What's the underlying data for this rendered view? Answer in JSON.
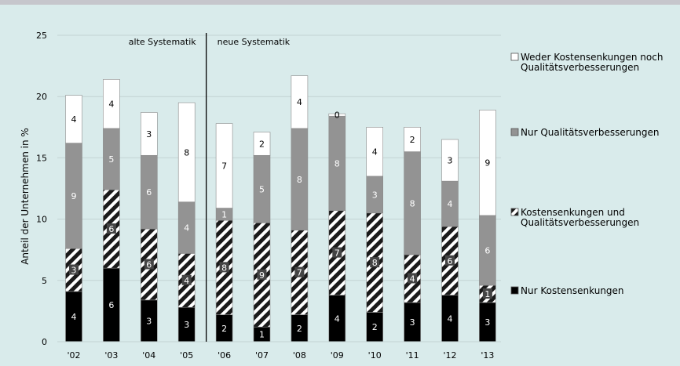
{
  "chart_data": {
    "type": "bar",
    "stacked": true,
    "categories": [
      "'02",
      "'03",
      "'04",
      "'05",
      "'06",
      "'07",
      "'08",
      "'09",
      "'10",
      "'11",
      "'12",
      "'13"
    ],
    "ylabel": "Anteil der Unternehmen in %",
    "yticks": [
      "0",
      "5",
      "10",
      "15",
      "20",
      "25"
    ],
    "ylim": [
      0,
      25
    ],
    "grid": true,
    "legend_position": "right",
    "annotations": {
      "left_period": "alte Systematik",
      "right_period": "neue Systematik",
      "divider_between": [
        "'05",
        "'06"
      ]
    },
    "series": [
      {
        "name": "Nur Kostensenkungen",
        "color": "#000000",
        "pattern": "solid",
        "values": [
          4.1,
          6.0,
          3.4,
          2.8,
          2.2,
          1.2,
          2.2,
          3.8,
          2.4,
          3.2,
          3.8,
          3.2
        ],
        "labels": [
          "4",
          "6",
          "3",
          "3",
          "2",
          "1",
          "2",
          "4",
          "2",
          "3",
          "4",
          "3"
        ]
      },
      {
        "name": "Kostensenkungen und Qualitätsverbesserungen",
        "color": "#444444",
        "pattern": "hatch",
        "values": [
          3.5,
          6.4,
          5.8,
          4.4,
          7.7,
          8.5,
          6.9,
          6.9,
          8.1,
          3.9,
          5.6,
          1.4
        ],
        "labels": [
          "3",
          "6",
          "6",
          "4",
          "8",
          "9",
          "7",
          "7",
          "8",
          "4",
          "6",
          "1"
        ]
      },
      {
        "name": "Nur Qualitätsverbesserungen",
        "color": "#939393",
        "pattern": "solid",
        "values": [
          8.6,
          5.0,
          6.0,
          4.2,
          1.0,
          5.5,
          8.3,
          7.7,
          3.0,
          8.4,
          3.7,
          5.7
        ],
        "labels": [
          "9",
          "5",
          "6",
          "4",
          "1",
          "5",
          "8",
          "8",
          "3",
          "8",
          "4",
          "6"
        ]
      },
      {
        "name": "Weder Kostensenkungen noch Qualitätsverbesserungen",
        "color": "#ffffff",
        "pattern": "solid",
        "values": [
          3.9,
          4.0,
          3.5,
          8.1,
          6.9,
          1.9,
          4.3,
          0.2,
          4.0,
          2.0,
          3.4,
          8.6
        ],
        "labels": [
          "4",
          "4",
          "3",
          "8",
          "7",
          "2",
          "4",
          "0",
          "4",
          "2",
          "3",
          "9"
        ]
      }
    ],
    "legend": [
      {
        "lines": [
          "Weder Kostensenkungen noch",
          "Qualitätsverbesserungen"
        ],
        "color": "#ffffff",
        "pattern": "solid"
      },
      {
        "lines": [
          "Nur Qualitätsverbesserungen"
        ],
        "color": "#939393",
        "pattern": "solid"
      },
      {
        "lines": [
          "Kostensenkungen und",
          "Qualitätsverbesserungen"
        ],
        "color": "#444444",
        "pattern": "hatch"
      },
      {
        "lines": [
          "Nur Kostensenkungen"
        ],
        "color": "#000000",
        "pattern": "solid"
      }
    ]
  }
}
